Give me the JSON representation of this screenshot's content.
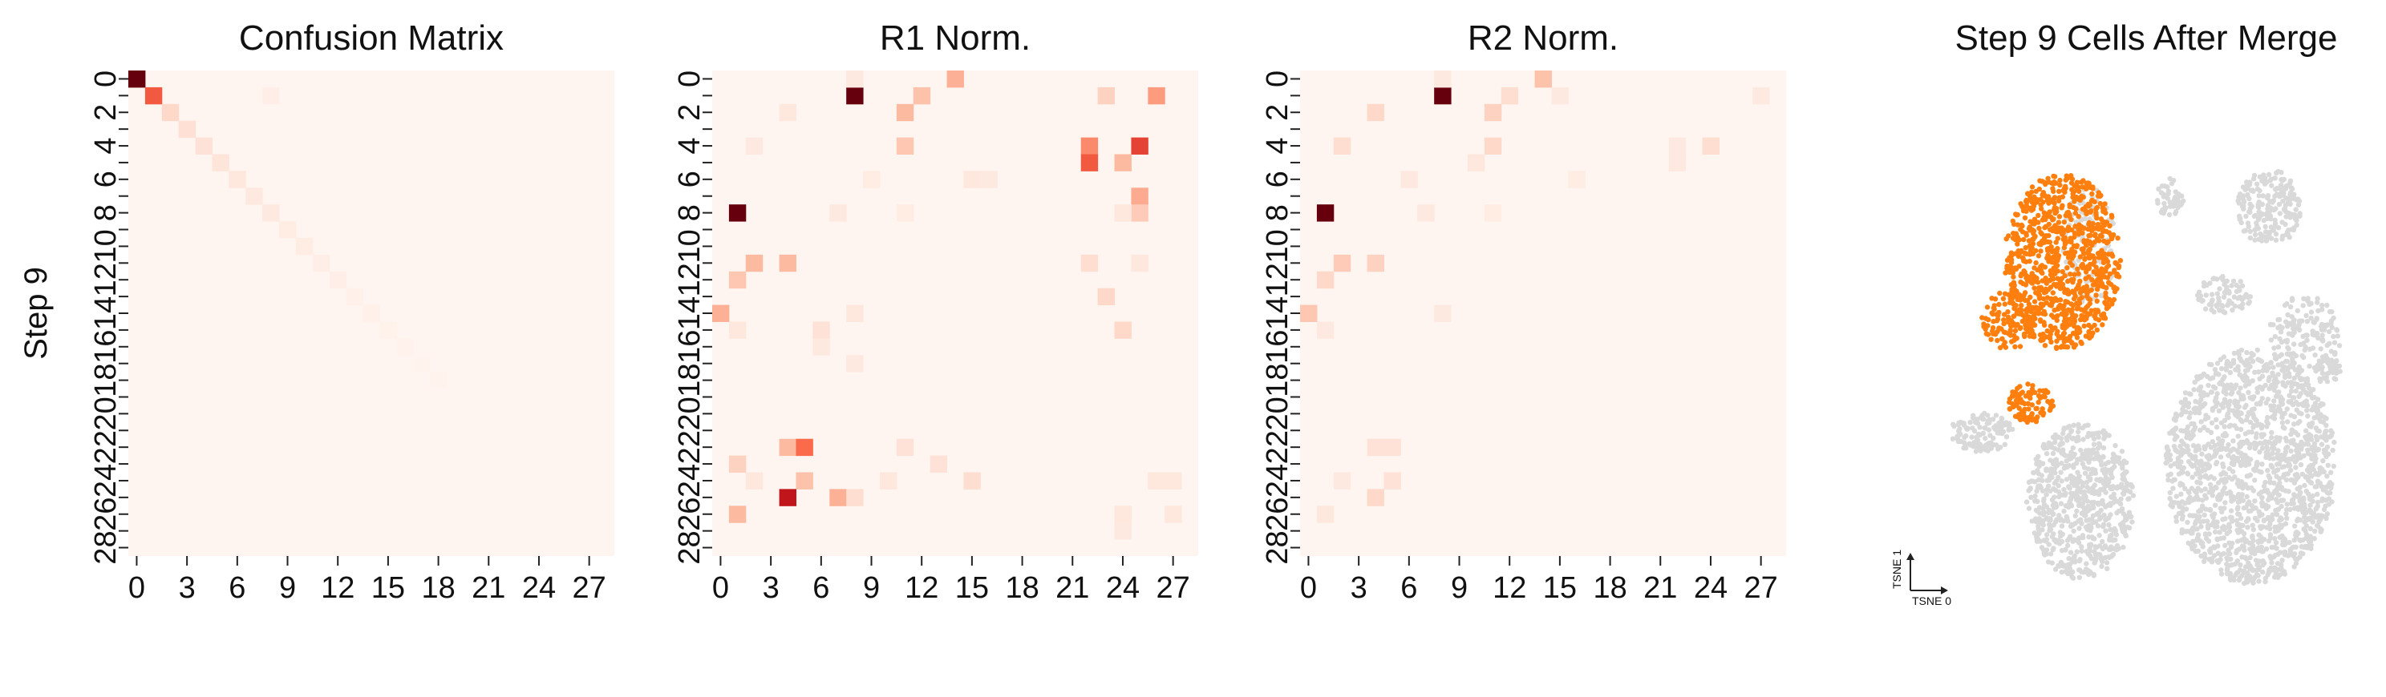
{
  "chart_data": [
    {
      "type": "heatmap",
      "title": "Confusion Matrix",
      "ylabel": "Step 9",
      "xlabel": "",
      "n": 29,
      "x_ticks": [
        0,
        3,
        6,
        9,
        12,
        15,
        18,
        21,
        24,
        27
      ],
      "y_ticks": [
        0,
        2,
        4,
        6,
        8,
        10,
        12,
        14,
        16,
        18,
        20,
        22,
        24,
        26,
        28
      ],
      "colormap": [
        "#fff5f0",
        "#fcbba1",
        "#fb6a4a",
        "#cb181d",
        "#67000d"
      ],
      "cells": [
        [
          0,
          0,
          1.0
        ],
        [
          1,
          1,
          0.55
        ],
        [
          2,
          2,
          0.12
        ],
        [
          3,
          3,
          0.09
        ],
        [
          4,
          4,
          0.08
        ],
        [
          5,
          5,
          0.07
        ],
        [
          6,
          6,
          0.06
        ],
        [
          7,
          7,
          0.05
        ],
        [
          8,
          8,
          0.05
        ],
        [
          8,
          1,
          0.03
        ],
        [
          9,
          9,
          0.04
        ],
        [
          10,
          10,
          0.04
        ],
        [
          11,
          11,
          0.03
        ],
        [
          12,
          12,
          0.03
        ],
        [
          13,
          13,
          0.02
        ],
        [
          14,
          14,
          0.02
        ],
        [
          15,
          15,
          0.015
        ],
        [
          16,
          16,
          0.012
        ],
        [
          17,
          17,
          0.01
        ],
        [
          18,
          18,
          0.01
        ]
      ]
    },
    {
      "type": "heatmap",
      "title": "R1 Norm.",
      "ylabel": "",
      "xlabel": "",
      "n": 29,
      "x_ticks": [
        0,
        3,
        6,
        9,
        12,
        15,
        18,
        21,
        24,
        27
      ],
      "y_ticks": [
        0,
        2,
        4,
        6,
        8,
        10,
        12,
        14,
        16,
        18,
        20,
        22,
        24,
        26,
        28
      ],
      "colormap": [
        "#fff5f0",
        "#fcbba1",
        "#fb6a4a",
        "#cb181d",
        "#67000d"
      ],
      "cells": [
        [
          8,
          1,
          1.0
        ],
        [
          14,
          0,
          0.28
        ],
        [
          8,
          0,
          0.05
        ],
        [
          12,
          1,
          0.22
        ],
        [
          11,
          2,
          0.25
        ],
        [
          26,
          1,
          0.35
        ],
        [
          23,
          1,
          0.15
        ],
        [
          4,
          2,
          0.06
        ],
        [
          11,
          4,
          0.2
        ],
        [
          22,
          4,
          0.4
        ],
        [
          25,
          4,
          0.62
        ],
        [
          2,
          4,
          0.05
        ],
        [
          22,
          5,
          0.55
        ],
        [
          24,
          5,
          0.25
        ],
        [
          25,
          7,
          0.3
        ],
        [
          15,
          6,
          0.06
        ],
        [
          16,
          6,
          0.05
        ],
        [
          9,
          6,
          0.04
        ],
        [
          1,
          8,
          1.0
        ],
        [
          25,
          8,
          0.18
        ],
        [
          24,
          8,
          0.06
        ],
        [
          7,
          8,
          0.05
        ],
        [
          11,
          8,
          0.04
        ],
        [
          2,
          11,
          0.25
        ],
        [
          4,
          11,
          0.25
        ],
        [
          22,
          11,
          0.1
        ],
        [
          25,
          11,
          0.06
        ],
        [
          1,
          12,
          0.2
        ],
        [
          23,
          13,
          0.12
        ],
        [
          0,
          14,
          0.28
        ],
        [
          8,
          14,
          0.06
        ],
        [
          1,
          15,
          0.06
        ],
        [
          24,
          15,
          0.12
        ],
        [
          6,
          15,
          0.08
        ],
        [
          6,
          16,
          0.05
        ],
        [
          8,
          17,
          0.05
        ],
        [
          4,
          22,
          0.25
        ],
        [
          5,
          22,
          0.5
        ],
        [
          11,
          22,
          0.08
        ],
        [
          1,
          23,
          0.15
        ],
        [
          13,
          23,
          0.08
        ],
        [
          2,
          24,
          0.06
        ],
        [
          5,
          24,
          0.22
        ],
        [
          10,
          24,
          0.06
        ],
        [
          15,
          24,
          0.1
        ],
        [
          26,
          24,
          0.06
        ],
        [
          27,
          24,
          0.06
        ],
        [
          4,
          25,
          0.78
        ],
        [
          7,
          25,
          0.28
        ],
        [
          8,
          25,
          0.1
        ],
        [
          1,
          26,
          0.25
        ],
        [
          24,
          26,
          0.06
        ],
        [
          27,
          26,
          0.06
        ],
        [
          24,
          27,
          0.05
        ]
      ]
    },
    {
      "type": "heatmap",
      "title": "R2 Norm.",
      "ylabel": "",
      "xlabel": "",
      "n": 29,
      "x_ticks": [
        0,
        3,
        6,
        9,
        12,
        15,
        18,
        21,
        24,
        27
      ],
      "y_ticks": [
        0,
        2,
        4,
        6,
        8,
        10,
        12,
        14,
        16,
        18,
        20,
        22,
        24,
        26,
        28
      ],
      "colormap": [
        "#fff5f0",
        "#fcbba1",
        "#fb6a4a",
        "#cb181d",
        "#67000d"
      ],
      "cells": [
        [
          8,
          1,
          1.0
        ],
        [
          14,
          0,
          0.22
        ],
        [
          8,
          0,
          0.05
        ],
        [
          12,
          1,
          0.1
        ],
        [
          11,
          2,
          0.15
        ],
        [
          4,
          2,
          0.12
        ],
        [
          15,
          1,
          0.05
        ],
        [
          27,
          1,
          0.05
        ],
        [
          11,
          4,
          0.12
        ],
        [
          2,
          4,
          0.1
        ],
        [
          24,
          4,
          0.1
        ],
        [
          22,
          4,
          0.05
        ],
        [
          22,
          5,
          0.05
        ],
        [
          10,
          5,
          0.06
        ],
        [
          6,
          6,
          0.05
        ],
        [
          16,
          6,
          0.04
        ],
        [
          1,
          8,
          1.0
        ],
        [
          7,
          8,
          0.05
        ],
        [
          11,
          8,
          0.04
        ],
        [
          2,
          11,
          0.18
        ],
        [
          4,
          11,
          0.15
        ],
        [
          1,
          12,
          0.12
        ],
        [
          0,
          14,
          0.2
        ],
        [
          8,
          14,
          0.05
        ],
        [
          1,
          15,
          0.05
        ],
        [
          4,
          22,
          0.08
        ],
        [
          5,
          22,
          0.08
        ],
        [
          2,
          24,
          0.05
        ],
        [
          5,
          24,
          0.08
        ],
        [
          4,
          25,
          0.12
        ],
        [
          1,
          26,
          0.06
        ]
      ]
    },
    {
      "type": "scatter",
      "title": "Step 9 Cells After Merge",
      "xlabel": "TSNE 0",
      "ylabel": "TSNE 1",
      "highlight_color": "#ff7f0e",
      "background_color": "#d9d9d9",
      "clusters": [
        {
          "name": "",
          "highlight": true,
          "cx": 0.36,
          "cy": 0.33,
          "rx": 0.13,
          "ry": 0.18,
          "count": 900
        },
        {
          "name": "",
          "highlight": true,
          "cx": 0.24,
          "cy": 0.45,
          "rx": 0.06,
          "ry": 0.06,
          "count": 120
        },
        {
          "name": "",
          "highlight": true,
          "cx": 0.29,
          "cy": 0.62,
          "rx": 0.05,
          "ry": 0.04,
          "count": 90
        },
        {
          "name": "",
          "highlight": false,
          "cx": 0.42,
          "cy": 0.3,
          "rx": 0.06,
          "ry": 0.12,
          "count": 120
        },
        {
          "name": "",
          "highlight": false,
          "cx": 0.4,
          "cy": 0.82,
          "rx": 0.12,
          "ry": 0.16,
          "count": 700
        },
        {
          "name": "",
          "highlight": false,
          "cx": 0.78,
          "cy": 0.75,
          "rx": 0.19,
          "ry": 0.24,
          "count": 1500
        },
        {
          "name": "",
          "highlight": false,
          "cx": 0.82,
          "cy": 0.22,
          "rx": 0.07,
          "ry": 0.08,
          "count": 200
        },
        {
          "name": "",
          "highlight": false,
          "cx": 0.72,
          "cy": 0.4,
          "rx": 0.06,
          "ry": 0.04,
          "count": 80
        },
        {
          "name": "",
          "highlight": false,
          "cx": 0.9,
          "cy": 0.48,
          "rx": 0.08,
          "ry": 0.08,
          "count": 150
        },
        {
          "name": "",
          "highlight": false,
          "cx": 0.6,
          "cy": 0.2,
          "rx": 0.03,
          "ry": 0.04,
          "count": 50
        },
        {
          "name": "",
          "highlight": false,
          "cx": 0.18,
          "cy": 0.68,
          "rx": 0.07,
          "ry": 0.04,
          "count": 120
        },
        {
          "name": "",
          "highlight": false,
          "cx": 0.95,
          "cy": 0.55,
          "rx": 0.03,
          "ry": 0.03,
          "count": 40
        }
      ]
    }
  ]
}
